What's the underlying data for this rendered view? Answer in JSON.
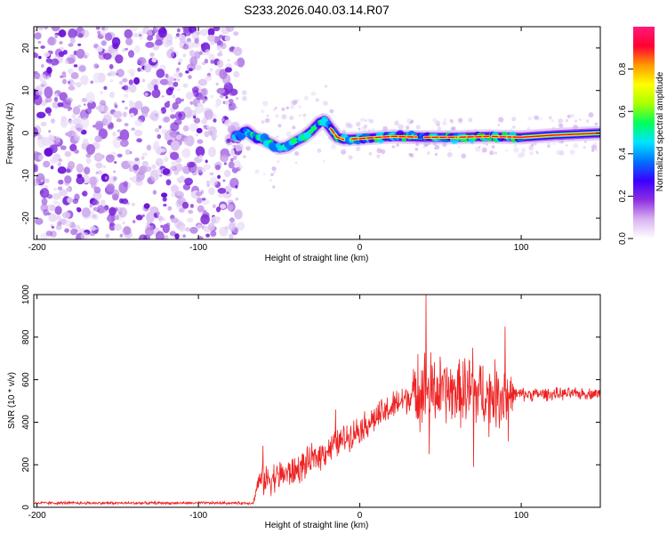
{
  "title": "S233.2026.040.03.14.R07",
  "chart_data": [
    {
      "type": "heatmap",
      "xlabel": "Height of straight line (km)",
      "ylabel": "Frequency (Hz)",
      "xlim": [
        -202,
        149
      ],
      "ylim": [
        -25,
        25
      ],
      "xticks": [
        -200,
        -100,
        0,
        100
      ],
      "yticks": [
        -20,
        -10,
        0,
        10,
        20
      ],
      "colorbar": {
        "label": "Normalized spectral amplitude",
        "range": [
          0,
          1
        ],
        "ticks": [
          "0.0",
          "0.2",
          "0.4",
          "0.6",
          "0.8"
        ],
        "colors": [
          "#ffffff",
          "#d9b3f0",
          "#8e2fe0",
          "#3a00ff",
          "#0072ff",
          "#00e5ff",
          "#00ff5a",
          "#aaff00",
          "#ffff00",
          "#ff9900",
          "#ff0033",
          "#ff1a7a"
        ]
      },
      "noise_region_x": [
        -202,
        -77
      ],
      "ridge": [
        {
          "x": -75,
          "y": -0.5
        },
        {
          "x": -70,
          "y": 0.5
        },
        {
          "x": -65,
          "y": -1.0
        },
        {
          "x": -60,
          "y": -1.5
        },
        {
          "x": -55,
          "y": -2.5
        },
        {
          "x": -50,
          "y": -3.5
        },
        {
          "x": -45,
          "y": -3.2
        },
        {
          "x": -40,
          "y": -2.0
        },
        {
          "x": -35,
          "y": -1.0
        },
        {
          "x": -30,
          "y": 0.5
        },
        {
          "x": -25,
          "y": 2.5
        },
        {
          "x": -22,
          "y": 3.0
        },
        {
          "x": -18,
          "y": 1.0
        },
        {
          "x": -14,
          "y": -1.0
        },
        {
          "x": -10,
          "y": -1.5
        },
        {
          "x": 0,
          "y": -1.3
        },
        {
          "x": 20,
          "y": -0.8
        },
        {
          "x": 40,
          "y": -1.0
        },
        {
          "x": 60,
          "y": -1.0
        },
        {
          "x": 80,
          "y": -0.8
        },
        {
          "x": 100,
          "y": -1.0
        },
        {
          "x": 120,
          "y": -0.5
        },
        {
          "x": 149,
          "y": 0.0
        }
      ]
    },
    {
      "type": "line",
      "xlabel": "Height of straight line (km)",
      "ylabel": "SNR (10 * v/v)",
      "xlim": [
        -202,
        149
      ],
      "ylim": [
        0,
        1000
      ],
      "xticks": [
        -200,
        -100,
        0,
        100
      ],
      "yticks": [
        0,
        200,
        400,
        600,
        800,
        1000
      ],
      "color": "#ee2222",
      "trend": [
        {
          "x": -202,
          "y": 20
        },
        {
          "x": -66,
          "y": 20
        },
        {
          "x": -63,
          "y": 120
        },
        {
          "x": -40,
          "y": 170
        },
        {
          "x": -20,
          "y": 270
        },
        {
          "x": 0,
          "y": 370
        },
        {
          "x": 20,
          "y": 470
        },
        {
          "x": 30,
          "y": 520
        },
        {
          "x": 40,
          "y": 550
        },
        {
          "x": 60,
          "y": 540
        },
        {
          "x": 90,
          "y": 530
        },
        {
          "x": 149,
          "y": 535
        }
      ],
      "noise_amplitude": [
        {
          "x": -202,
          "y": 8
        },
        {
          "x": -66,
          "y": 8
        },
        {
          "x": -60,
          "y": 90
        },
        {
          "x": 0,
          "y": 80
        },
        {
          "x": 30,
          "y": 90
        },
        {
          "x": 40,
          "y": 230
        },
        {
          "x": 60,
          "y": 170
        },
        {
          "x": 70,
          "y": 230
        },
        {
          "x": 80,
          "y": 160
        },
        {
          "x": 90,
          "y": 230
        },
        {
          "x": 96,
          "y": 40
        },
        {
          "x": 149,
          "y": 30
        }
      ],
      "spikes": [
        {
          "x": -60,
          "y": 290
        },
        {
          "x": -15,
          "y": 460
        },
        {
          "x": 36,
          "y": 720
        },
        {
          "x": 41,
          "y": 1000
        },
        {
          "x": 43,
          "y": 250
        },
        {
          "x": 65,
          "y": 700
        },
        {
          "x": 70,
          "y": 750
        },
        {
          "x": 70.5,
          "y": 190
        },
        {
          "x": 80,
          "y": 330
        },
        {
          "x": 90,
          "y": 850
        },
        {
          "x": 92,
          "y": 310
        }
      ]
    }
  ]
}
